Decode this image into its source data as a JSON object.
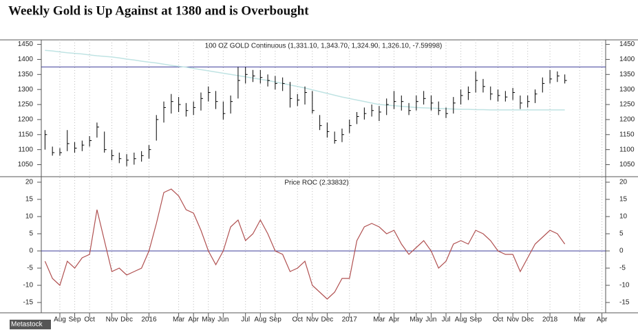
{
  "title": "Weekly Gold is Up Against at 1380 and is Overbought",
  "watermark": "Metastock",
  "chart_data": [
    {
      "type": "ohlc",
      "annotation": "100 OZ GOLD Continuous (1,331.10, 1,343.70, 1,324.90, 1,326.10, -7.59998)",
      "high": [
        1165,
        1110,
        1105,
        1165,
        1125,
        1130,
        1145,
        1190,
        1160,
        1100,
        1090,
        1085,
        1090,
        1095,
        1115,
        1215,
        1260,
        1285,
        1275,
        1255,
        1260,
        1290,
        1310,
        1295,
        1260,
        1280,
        1375,
        1375,
        1365,
        1365,
        1350,
        1345,
        1340,
        1325,
        1285,
        1310,
        1295,
        1215,
        1190,
        1160,
        1170,
        1200,
        1225,
        1240,
        1250,
        1245,
        1270,
        1295,
        1280,
        1255,
        1280,
        1295,
        1280,
        1260,
        1240,
        1275,
        1300,
        1310,
        1360,
        1335,
        1310,
        1300,
        1295,
        1305,
        1280,
        1280,
        1300,
        1340,
        1365,
        1360,
        1350,
        null,
        null,
        null,
        null,
        null
      ],
      "low": [
        1100,
        1080,
        1080,
        1095,
        1090,
        1095,
        1110,
        1140,
        1090,
        1065,
        1055,
        1045,
        1050,
        1060,
        1070,
        1130,
        1190,
        1220,
        1225,
        1210,
        1215,
        1230,
        1260,
        1235,
        1200,
        1220,
        1270,
        1320,
        1325,
        1320,
        1310,
        1300,
        1295,
        1240,
        1245,
        1250,
        1220,
        1165,
        1140,
        1120,
        1125,
        1155,
        1185,
        1200,
        1210,
        1195,
        1215,
        1235,
        1230,
        1215,
        1230,
        1250,
        1230,
        1215,
        1205,
        1220,
        1250,
        1265,
        1290,
        1290,
        1265,
        1260,
        1260,
        1265,
        1235,
        1240,
        1255,
        1290,
        1320,
        1325,
        1320,
        null,
        null,
        null,
        null,
        null
      ],
      "close": [
        1150,
        1090,
        1090,
        1120,
        1105,
        1115,
        1130,
        1175,
        1100,
        1080,
        1070,
        1065,
        1070,
        1080,
        1100,
        1200,
        1240,
        1260,
        1250,
        1230,
        1240,
        1270,
        1290,
        1260,
        1220,
        1260,
        1330,
        1350,
        1345,
        1340,
        1330,
        1320,
        1320,
        1270,
        1265,
        1290,
        1230,
        1180,
        1160,
        1130,
        1150,
        1180,
        1210,
        1220,
        1230,
        1225,
        1250,
        1260,
        1260,
        1230,
        1260,
        1270,
        1255,
        1230,
        1220,
        1255,
        1280,
        1290,
        1330,
        1310,
        1285,
        1280,
        1275,
        1290,
        1255,
        1260,
        1285,
        1320,
        1335,
        1345,
        1330,
        null,
        null,
        null,
        null,
        null
      ],
      "moving_average": [
        1430,
        1428,
        1425,
        1422,
        1420,
        1418,
        1415,
        1412,
        1410,
        1408,
        1405,
        1401,
        1398,
        1394,
        1391,
        1388,
        1384,
        1380,
        1377,
        1374,
        1370,
        1366,
        1362,
        1358,
        1354,
        1350,
        1346,
        1342,
        1338,
        1334,
        1330,
        1325,
        1320,
        1315,
        1310,
        1305,
        1299,
        1293,
        1287,
        1281,
        1275,
        1270,
        1265,
        1260,
        1255,
        1250,
        1248,
        1246,
        1244,
        1242,
        1240,
        1239,
        1238,
        1237,
        1236,
        1235,
        1234,
        1234,
        1233,
        1233,
        1232,
        1232,
        1232,
        1232,
        1232,
        1232,
        1232,
        1232,
        1232,
        1232,
        1232,
        null,
        null,
        null,
        null,
        null
      ],
      "reference_line": 1375,
      "ylim": [
        1010,
        1465
      ],
      "yticks": [
        1050,
        1100,
        1150,
        1200,
        1250,
        1300,
        1350,
        1400,
        1450
      ],
      "colors": {
        "bars": "#000000",
        "moving_average": "#bfe3e3",
        "reference_line": "#3b3b9a"
      }
    },
    {
      "type": "line",
      "annotation": "Price ROC (2.33832)",
      "categories": [
        null,
        null,
        "Aug",
        null,
        "Sep",
        null,
        "Oct",
        null,
        null,
        "Nov",
        null,
        "Dec",
        null,
        null,
        "2016",
        null,
        null,
        null,
        "Mar",
        null,
        "Apr",
        null,
        "May",
        null,
        "Jun",
        null,
        null,
        "Jul",
        null,
        "Aug",
        null,
        "Sep",
        null,
        null,
        "Oct",
        null,
        "Nov",
        null,
        "Dec",
        null,
        null,
        "2017",
        null,
        null,
        null,
        "Mar",
        null,
        "Apr",
        null,
        null,
        "May",
        null,
        "Jun",
        null,
        "Jul",
        null,
        "Aug",
        null,
        "Sep",
        null,
        null,
        "Oct",
        null,
        "Nov",
        null,
        "Dec",
        null,
        null,
        "2018",
        null,
        null,
        null,
        "Mar",
        null,
        null,
        "Apr"
      ],
      "values": [
        -3,
        -8,
        -10,
        -3,
        -5,
        -2,
        -1,
        12,
        3,
        -6,
        -5,
        -7,
        -6,
        -5,
        0,
        8,
        17,
        18,
        16,
        12,
        11,
        6,
        0,
        -4,
        0,
        7,
        9,
        3,
        5,
        9,
        5,
        0,
        -1,
        -6,
        -5,
        -3,
        -10,
        -12,
        -14,
        -12,
        -8,
        -8,
        3,
        7,
        8,
        7,
        5,
        6,
        2,
        -1,
        1,
        3,
        0,
        -5,
        -3,
        2,
        3,
        2,
        6,
        5,
        3,
        0,
        -1,
        -1,
        -6,
        -2,
        2,
        4,
        6,
        5,
        2,
        null,
        null,
        null,
        null,
        null
      ],
      "reference_line": 0,
      "ylim": [
        -18,
        21.6
      ],
      "yticks": [
        -15,
        -10,
        -5,
        0,
        5,
        10,
        15,
        20
      ],
      "colors": {
        "line": "#b05050",
        "reference_line": "#3b3b9a"
      }
    }
  ]
}
